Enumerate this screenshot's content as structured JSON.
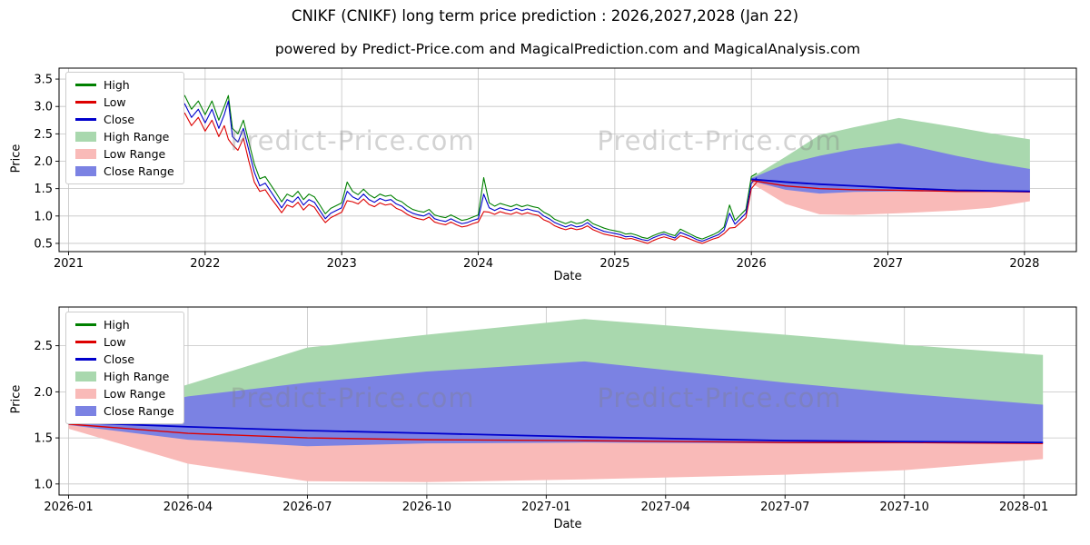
{
  "title": "CNIKF (CNIKF) long term price prediction : 2026,2027,2028 (Jan 22)",
  "subtitle": "powered by Predict-Price.com and MagicalPrediction.com and MagicalAnalysis.com",
  "watermark": "Predict-Price.com",
  "colors": {
    "high_line": "#008000",
    "low_line": "#dd0000",
    "close_line": "#0000cc",
    "high_fill": "#a9d8ae",
    "low_fill": "#f9bab8",
    "close_fill": "#7b82e3",
    "grid": "#c3c3c3",
    "axis": "#000000",
    "watermark_gray": "#c9c9c9"
  },
  "legend": {
    "items": [
      {
        "label": "High",
        "type": "line",
        "color": "#008000"
      },
      {
        "label": "Low",
        "type": "line",
        "color": "#dd0000"
      },
      {
        "label": "Close",
        "type": "line",
        "color": "#0000cc"
      },
      {
        "label": "High Range",
        "type": "patch",
        "color": "#a9d8ae"
      },
      {
        "label": "Low Range",
        "type": "patch",
        "color": "#f9bab8"
      },
      {
        "label": "Close Range",
        "type": "patch",
        "color": "#7b82e3"
      }
    ]
  },
  "chart_data": [
    {
      "type": "line",
      "title": "",
      "xlabel": "Date",
      "ylabel": "Price",
      "grid": true,
      "legend_position": "upper left",
      "xlim": [
        2020.93,
        2028.38
      ],
      "ylim": [
        0.35,
        3.7
      ],
      "xticks": {
        "values": [
          2021,
          2022,
          2023,
          2024,
          2025,
          2026,
          2027,
          2028
        ],
        "labels": [
          "2021",
          "2022",
          "2023",
          "2024",
          "2025",
          "2026",
          "2027",
          "2028"
        ]
      },
      "yticks": {
        "values": [
          0.5,
          1.0,
          1.5,
          2.0,
          2.5,
          3.0,
          3.5
        ],
        "labels": [
          "0.5",
          "1.0",
          "1.5",
          "2.0",
          "2.5",
          "3.0",
          "3.5"
        ]
      },
      "series": {
        "history": {
          "x": [
            2021.35,
            2021.4,
            2021.45,
            2021.5,
            2021.55,
            2021.6,
            2021.65,
            2021.7,
            2021.75,
            2021.8,
            2021.85,
            2021.9,
            2021.95,
            2022.0,
            2022.05,
            2022.1,
            2022.14,
            2022.17,
            2022.2,
            2022.24,
            2022.28,
            2022.32,
            2022.36,
            2022.4,
            2022.44,
            2022.48,
            2022.52,
            2022.56,
            2022.6,
            2022.64,
            2022.68,
            2022.72,
            2022.76,
            2022.8,
            2022.84,
            2022.88,
            2022.92,
            2022.96,
            2023.0,
            2023.04,
            2023.08,
            2023.12,
            2023.16,
            2023.2,
            2023.24,
            2023.28,
            2023.32,
            2023.36,
            2023.4,
            2023.44,
            2023.48,
            2023.52,
            2023.56,
            2023.6,
            2023.64,
            2023.68,
            2023.72,
            2023.76,
            2023.8,
            2023.84,
            2023.88,
            2023.92,
            2023.96,
            2024.0,
            2024.04,
            2024.08,
            2024.12,
            2024.16,
            2024.2,
            2024.24,
            2024.28,
            2024.32,
            2024.36,
            2024.4,
            2024.44,
            2024.48,
            2024.52,
            2024.56,
            2024.6,
            2024.64,
            2024.68,
            2024.72,
            2024.76,
            2024.8,
            2024.84,
            2024.88,
            2024.92,
            2024.96,
            2025.0,
            2025.04,
            2025.08,
            2025.12,
            2025.16,
            2025.2,
            2025.24,
            2025.28,
            2025.32,
            2025.36,
            2025.4,
            2025.44,
            2025.48,
            2025.52,
            2025.56,
            2025.6,
            2025.64,
            2025.68,
            2025.72,
            2025.76,
            2025.8,
            2025.84,
            2025.88,
            2025.92,
            2025.96,
            2026.0,
            2026.04
          ],
          "high": [
            2.7,
            3.5,
            3.0,
            2.85,
            3.05,
            2.9,
            3.1,
            2.95,
            3.15,
            3.05,
            3.2,
            2.95,
            3.1,
            2.85,
            3.1,
            2.75,
            3.0,
            3.2,
            2.6,
            2.5,
            2.75,
            2.35,
            1.95,
            1.68,
            1.72,
            1.57,
            1.42,
            1.26,
            1.4,
            1.35,
            1.45,
            1.3,
            1.4,
            1.35,
            1.2,
            1.04,
            1.14,
            1.19,
            1.24,
            1.62,
            1.45,
            1.39,
            1.49,
            1.39,
            1.33,
            1.4,
            1.36,
            1.38,
            1.3,
            1.26,
            1.18,
            1.12,
            1.09,
            1.07,
            1.12,
            1.02,
            0.99,
            0.97,
            1.02,
            0.97,
            0.92,
            0.94,
            0.98,
            1.02,
            1.7,
            1.24,
            1.18,
            1.23,
            1.2,
            1.17,
            1.21,
            1.17,
            1.2,
            1.17,
            1.15,
            1.07,
            1.02,
            0.94,
            0.9,
            0.86,
            0.9,
            0.86,
            0.88,
            0.94,
            0.86,
            0.82,
            0.78,
            0.75,
            0.73,
            0.71,
            0.67,
            0.68,
            0.65,
            0.61,
            0.59,
            0.64,
            0.68,
            0.71,
            0.67,
            0.64,
            0.76,
            0.71,
            0.66,
            0.61,
            0.58,
            0.62,
            0.66,
            0.71,
            0.8,
            1.2,
            0.92,
            1.02,
            1.12,
            1.72,
            1.78
          ],
          "low": [
            2.42,
            2.75,
            2.65,
            2.55,
            2.72,
            2.6,
            2.78,
            2.65,
            2.85,
            2.75,
            2.88,
            2.65,
            2.8,
            2.55,
            2.75,
            2.45,
            2.65,
            2.4,
            2.3,
            2.2,
            2.42,
            2.0,
            1.62,
            1.45,
            1.48,
            1.33,
            1.2,
            1.06,
            1.2,
            1.16,
            1.25,
            1.11,
            1.21,
            1.16,
            1.01,
            0.88,
            0.97,
            1.02,
            1.07,
            1.28,
            1.26,
            1.22,
            1.31,
            1.21,
            1.17,
            1.24,
            1.2,
            1.22,
            1.14,
            1.1,
            1.03,
            0.98,
            0.95,
            0.93,
            0.98,
            0.89,
            0.86,
            0.84,
            0.89,
            0.84,
            0.8,
            0.82,
            0.86,
            0.89,
            1.08,
            1.07,
            1.03,
            1.08,
            1.05,
            1.03,
            1.07,
            1.03,
            1.06,
            1.03,
            1.01,
            0.93,
            0.89,
            0.82,
            0.78,
            0.75,
            0.78,
            0.75,
            0.77,
            0.82,
            0.75,
            0.71,
            0.67,
            0.65,
            0.63,
            0.61,
            0.58,
            0.59,
            0.56,
            0.53,
            0.5,
            0.55,
            0.59,
            0.62,
            0.59,
            0.56,
            0.64,
            0.61,
            0.57,
            0.53,
            0.5,
            0.54,
            0.58,
            0.61,
            0.68,
            0.78,
            0.79,
            0.88,
            0.97,
            1.5,
            1.62
          ],
          "close": [
            2.55,
            3.3,
            2.85,
            2.7,
            2.9,
            2.75,
            2.95,
            2.8,
            3.0,
            2.9,
            3.05,
            2.8,
            2.95,
            2.7,
            2.95,
            2.6,
            2.85,
            3.1,
            2.45,
            2.35,
            2.6,
            2.2,
            1.8,
            1.55,
            1.6,
            1.45,
            1.3,
            1.15,
            1.3,
            1.25,
            1.35,
            1.2,
            1.3,
            1.25,
            1.1,
            0.95,
            1.05,
            1.1,
            1.15,
            1.45,
            1.35,
            1.3,
            1.4,
            1.3,
            1.25,
            1.32,
            1.28,
            1.3,
            1.22,
            1.18,
            1.1,
            1.05,
            1.02,
            1.0,
            1.05,
            0.95,
            0.92,
            0.9,
            0.95,
            0.9,
            0.86,
            0.88,
            0.92,
            0.95,
            1.4,
            1.15,
            1.1,
            1.15,
            1.12,
            1.1,
            1.14,
            1.1,
            1.13,
            1.1,
            1.08,
            1.0,
            0.95,
            0.88,
            0.84,
            0.8,
            0.84,
            0.8,
            0.82,
            0.88,
            0.8,
            0.76,
            0.72,
            0.7,
            0.68,
            0.66,
            0.62,
            0.63,
            0.6,
            0.57,
            0.55,
            0.6,
            0.64,
            0.67,
            0.63,
            0.6,
            0.7,
            0.66,
            0.62,
            0.57,
            0.54,
            0.58,
            0.62,
            0.66,
            0.74,
            1.05,
            0.85,
            0.95,
            1.05,
            1.6,
            1.7
          ]
        },
        "forecast": {
          "x": [
            2026.0,
            2026.25,
            2026.5,
            2026.75,
            2027.08,
            2027.5,
            2027.75,
            2028.04
          ],
          "close": [
            1.67,
            1.62,
            1.58,
            1.55,
            1.51,
            1.47,
            1.46,
            1.45
          ],
          "low": [
            1.65,
            1.55,
            1.5,
            1.48,
            1.47,
            1.45,
            1.45,
            1.44
          ],
          "high_range": {
            "upper": [
              1.7,
              2.08,
              2.48,
              2.62,
              2.79,
              2.62,
              2.51,
              2.4
            ],
            "lower": [
              1.67,
              1.62,
              1.58,
              1.55,
              1.51,
              1.47,
              1.46,
              1.45
            ]
          },
          "close_range": {
            "upper": [
              1.69,
              1.95,
              2.1,
              2.22,
              2.33,
              2.1,
              1.98,
              1.86
            ],
            "lower": [
              1.64,
              1.48,
              1.41,
              1.44,
              1.45,
              1.44,
              1.44,
              1.44
            ]
          },
          "low_range": {
            "upper": [
              1.65,
              1.55,
              1.5,
              1.48,
              1.47,
              1.45,
              1.45,
              1.44
            ],
            "lower": [
              1.6,
              1.22,
              1.03,
              1.02,
              1.05,
              1.1,
              1.15,
              1.27
            ]
          }
        }
      }
    },
    {
      "type": "line",
      "title": "",
      "xlabel": "Date",
      "ylabel": "Price",
      "grid": true,
      "legend_position": "upper left",
      "xlim": [
        2025.98,
        2028.11
      ],
      "ylim": [
        0.88,
        2.92
      ],
      "xticks": {
        "values": [
          2026.0,
          2026.25,
          2026.5,
          2026.75,
          2027.0,
          2027.25,
          2027.5,
          2027.75,
          2028.0
        ],
        "labels": [
          "2026-01",
          "2026-04",
          "2026-07",
          "2026-10",
          "2027-01",
          "2027-04",
          "2027-07",
          "2027-10",
          "2028-01"
        ]
      },
      "yticks": {
        "values": [
          1.0,
          1.5,
          2.0,
          2.5
        ],
        "labels": [
          "1.0",
          "1.5",
          "2.0",
          "2.5"
        ]
      },
      "series": {
        "forecast": {
          "x": [
            2026.0,
            2026.25,
            2026.5,
            2026.75,
            2027.08,
            2027.5,
            2027.75,
            2028.04
          ],
          "close": [
            1.67,
            1.62,
            1.58,
            1.55,
            1.51,
            1.47,
            1.46,
            1.45
          ],
          "low": [
            1.65,
            1.55,
            1.5,
            1.48,
            1.47,
            1.45,
            1.45,
            1.44
          ],
          "high_range": {
            "upper": [
              1.7,
              2.08,
              2.48,
              2.62,
              2.79,
              2.62,
              2.51,
              2.4
            ],
            "lower": [
              1.67,
              1.62,
              1.58,
              1.55,
              1.51,
              1.47,
              1.46,
              1.45
            ]
          },
          "close_range": {
            "upper": [
              1.69,
              1.95,
              2.1,
              2.22,
              2.33,
              2.1,
              1.98,
              1.86
            ],
            "lower": [
              1.64,
              1.48,
              1.41,
              1.44,
              1.45,
              1.44,
              1.44,
              1.44
            ]
          },
          "low_range": {
            "upper": [
              1.65,
              1.55,
              1.5,
              1.48,
              1.47,
              1.45,
              1.45,
              1.44
            ],
            "lower": [
              1.6,
              1.22,
              1.03,
              1.02,
              1.05,
              1.1,
              1.15,
              1.27
            ]
          }
        }
      }
    }
  ]
}
